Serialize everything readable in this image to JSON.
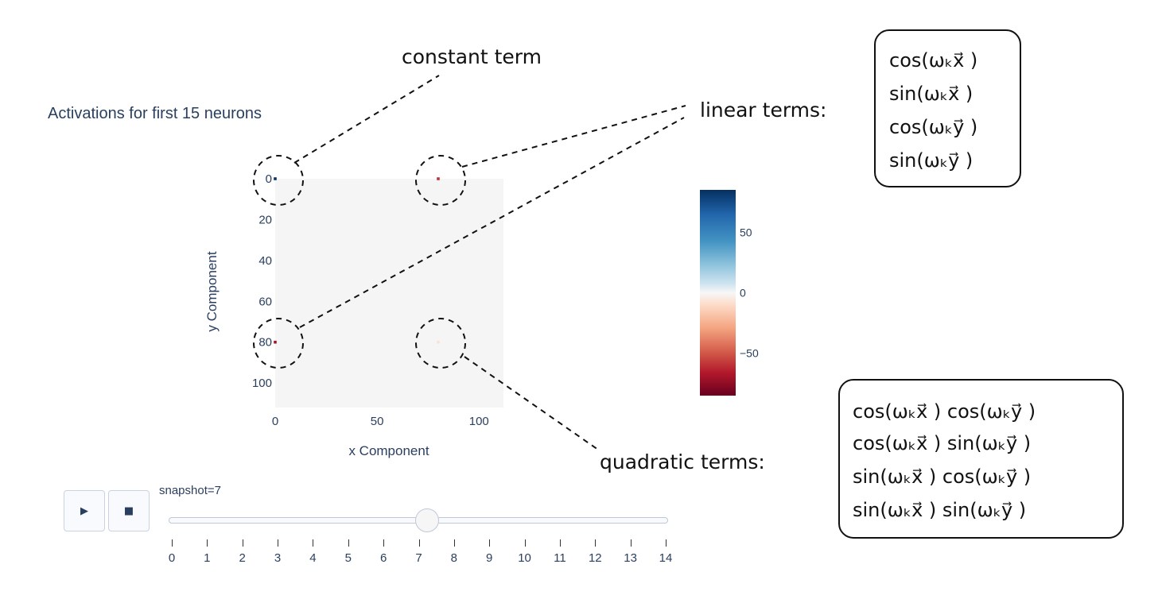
{
  "chart_data": {
    "type": "heatmap",
    "title": "Activations for first 15 neurons",
    "xlabel": "x Component",
    "ylabel": "y Component",
    "xlim": [
      0,
      112
    ],
    "ylim": [
      112,
      0
    ],
    "x_ticks": [
      "0",
      "50",
      "100"
    ],
    "y_ticks": [
      "0",
      "20",
      "40",
      "60",
      "80",
      "100"
    ],
    "background_value": 0,
    "nonzero_cells": [
      {
        "x": 0,
        "y": 0,
        "value": 85
      },
      {
        "x": 80,
        "y": 0,
        "value": -60
      },
      {
        "x": 0,
        "y": 80,
        "value": -70
      },
      {
        "x": 80,
        "y": 80,
        "value": -8
      }
    ],
    "colorscale": "RdBu",
    "colorbar": {
      "range": [
        -85,
        85
      ],
      "ticks": [
        "50",
        "0",
        "−50"
      ]
    },
    "slider": {
      "label": "snapshot=7",
      "current": 7,
      "steps": [
        "0",
        "1",
        "2",
        "3",
        "4",
        "5",
        "6",
        "7",
        "8",
        "9",
        "10",
        "11",
        "12",
        "13",
        "14"
      ]
    }
  },
  "controls": {
    "play_icon": "play-icon",
    "stop_icon": "stop-icon",
    "play_glyph": "▶",
    "stop_glyph": "■"
  },
  "annotations": {
    "constant": "constant term",
    "linear": "linear terms:",
    "quadratic": "quadratic terms:",
    "linear_box": [
      "cos(ωₖx⃗ )",
      "sin(ωₖx⃗ )",
      "cos(ωₖy⃗ )",
      "sin(ωₖy⃗ )"
    ],
    "quadratic_box": [
      "cos(ωₖx⃗ ) cos(ωₖy⃗ )",
      "cos(ωₖx⃗ ) sin(ωₖy⃗ )",
      "sin(ωₖx⃗ ) cos(ωₖy⃗ )",
      "sin(ωₖx⃗ ) sin(ωₖy⃗ )"
    ]
  }
}
